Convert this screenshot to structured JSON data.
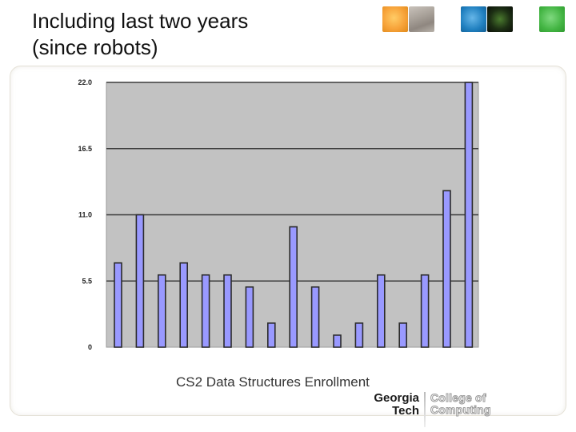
{
  "slide": {
    "title_line1": "Including last two years",
    "title_line2": "(since robots)",
    "caption": "CS2 Data Structures Enrollment",
    "logo": {
      "name_line1": "Georgia",
      "name_line2": "Tech",
      "unit_line1": "College of",
      "unit_line2": "Computing"
    },
    "thumbnails": [
      "orange-sphere",
      "campus-photo",
      "blue-sphere",
      "circuit-photo",
      "green-sphere"
    ]
  },
  "colors": {
    "plot_background": "#c2c2c2",
    "bar_fill": "#9999ff",
    "bar_stroke": "#2b2b2b",
    "gridline": "#3a3a3a"
  },
  "chart_data": {
    "type": "bar",
    "title": "",
    "xlabel": "",
    "ylabel": "",
    "ylim": [
      0,
      22
    ],
    "yticks": [
      0,
      5.5,
      11,
      16.5,
      22
    ],
    "ytick_labels": [
      "0",
      "5.5",
      "11.0",
      "16.5",
      "22.0"
    ],
    "grid": true,
    "legend": "none",
    "values": [
      7,
      11,
      6,
      7,
      6,
      6,
      5,
      2,
      10,
      5,
      1,
      2,
      6,
      2,
      6,
      13,
      22
    ]
  }
}
